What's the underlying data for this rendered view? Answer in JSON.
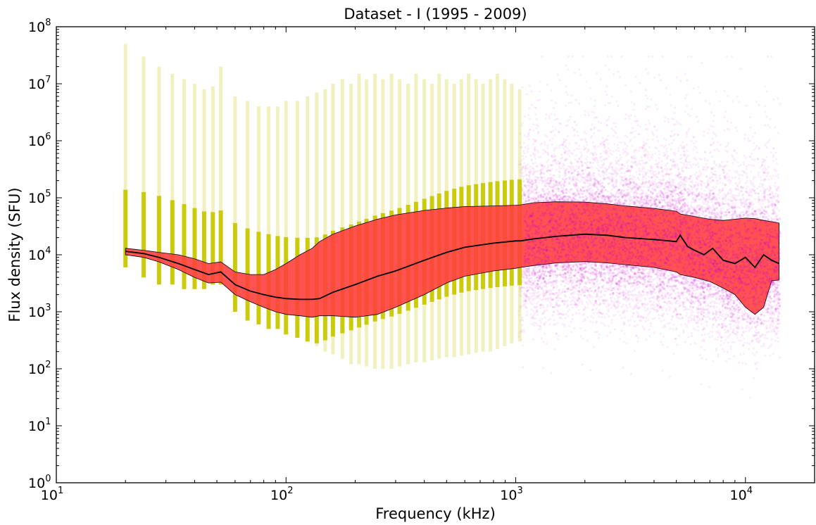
{
  "chart_data": {
    "type": "scatter",
    "title": "Dataset - I (1995 - 2009)",
    "xlabel": "Frequency (kHz)",
    "ylabel": "Flux density (SFU)",
    "xscale": "log",
    "yscale": "log",
    "xlim": [
      10,
      20000
    ],
    "ylim": [
      1,
      100000000
    ],
    "grid": false,
    "legend": "none",
    "x_ticks": [
      {
        "base": "10",
        "exp": "1"
      },
      {
        "base": "10",
        "exp": "2"
      },
      {
        "base": "10",
        "exp": "3"
      },
      {
        "base": "10",
        "exp": "4"
      }
    ],
    "y_ticks": [
      {
        "base": "10",
        "exp": "0"
      },
      {
        "base": "10",
        "exp": "1"
      },
      {
        "base": "10",
        "exp": "2"
      },
      {
        "base": "10",
        "exp": "3"
      },
      {
        "base": "10",
        "exp": "4"
      },
      {
        "base": "10",
        "exp": "5"
      },
      {
        "base": "10",
        "exp": "6"
      },
      {
        "base": "10",
        "exp": "7"
      },
      {
        "base": "10",
        "exp": "8"
      }
    ],
    "colors": {
      "low_freq_points": "#c8c800",
      "high_freq_points": "#cc00cc",
      "band_fill": "#ff3b3b",
      "median_line": "#000000"
    },
    "scatter_low": {
      "frequencies": [
        20,
        24,
        28,
        32,
        36,
        40,
        44,
        48,
        52,
        60,
        68,
        76,
        84,
        92,
        100,
        112,
        124,
        136,
        148,
        160,
        176,
        192,
        208,
        224,
        244,
        264,
        288,
        312,
        340,
        368,
        400,
        432,
        464,
        500,
        540,
        580,
        624,
        672,
        720,
        776,
        832,
        896,
        960,
        1040
      ],
      "y_max": [
        50000000,
        30000000,
        20000000,
        15000000,
        12000000,
        10000000,
        8000000,
        9000000,
        20000000,
        6000000,
        5000000,
        4000000,
        4000000,
        4000000,
        5000000,
        5000000,
        6000000,
        7000000,
        8000000,
        10000000,
        12000000,
        10000000,
        15000000,
        12000000,
        15000000,
        12000000,
        15000000,
        12000000,
        10000000,
        15000000,
        12000000,
        10000000,
        15000000,
        12000000,
        10000000,
        12000000,
        15000000,
        12000000,
        10000000,
        12000000,
        15000000,
        12000000,
        10000000,
        8000000
      ],
      "y_min": [
        6000,
        4000,
        3000,
        3000,
        2500,
        2500,
        2500,
        3000,
        3000,
        1000,
        700,
        600,
        500,
        500,
        400,
        350,
        300,
        250,
        200,
        180,
        150,
        120,
        120,
        110,
        100,
        100,
        100,
        110,
        120,
        130,
        130,
        140,
        150,
        160,
        160,
        170,
        180,
        190,
        200,
        200,
        220,
        250,
        280,
        300
      ]
    },
    "scatter_high": {
      "frequency_range": [
        1040,
        14000
      ],
      "y_range": [
        1,
        30000000
      ]
    },
    "band": {
      "x": [
        20,
        24,
        28,
        34,
        40,
        46,
        52,
        60,
        70,
        80,
        90,
        100,
        115,
        130,
        140,
        160,
        200,
        250,
        300,
        400,
        500,
        600,
        800,
        1000,
        1050,
        1200,
        1500,
        2000,
        2500,
        3000,
        4000,
        5000,
        5200,
        6000,
        7000,
        8000,
        9000,
        10000,
        11000,
        12000,
        13000,
        14000
      ],
      "upper": [
        13000,
        12000,
        11000,
        10000,
        8500,
        7000,
        7500,
        5000,
        4500,
        4500,
        5500,
        7000,
        10000,
        13000,
        17000,
        23000,
        32000,
        42000,
        50000,
        60000,
        66000,
        70000,
        72000,
        74000,
        75000,
        82000,
        85000,
        84000,
        78000,
        72000,
        65000,
        58000,
        52000,
        47000,
        42000,
        40000,
        42000,
        44000,
        43000,
        40000,
        38000,
        36000
      ],
      "lower": [
        10000,
        9000,
        7500,
        5500,
        4000,
        3200,
        3300,
        2000,
        1500,
        1200,
        1000,
        900,
        850,
        800,
        850,
        850,
        800,
        900,
        1200,
        2000,
        3200,
        4200,
        5200,
        5800,
        6000,
        6500,
        7200,
        7600,
        7200,
        6700,
        6000,
        5000,
        4500,
        4000,
        3400,
        2600,
        2000,
        1200,
        900,
        1200,
        3500,
        3600
      ]
    },
    "median": {
      "x": [
        20,
        24,
        28,
        34,
        40,
        46,
        52,
        60,
        70,
        80,
        90,
        100,
        115,
        130,
        140,
        160,
        200,
        250,
        300,
        400,
        500,
        600,
        800,
        1000,
        1050,
        1200,
        1500,
        2000,
        2500,
        3000,
        4000,
        5000,
        5200,
        5600,
        6000,
        6600,
        7200,
        8000,
        9000,
        10000,
        11000,
        12000,
        13000,
        14000
      ],
      "y": [
        11500,
        10500,
        9000,
        7000,
        5500,
        4500,
        5000,
        3000,
        2300,
        2000,
        1800,
        1700,
        1650,
        1650,
        1700,
        2200,
        3000,
        4200,
        5200,
        8000,
        11000,
        13500,
        16000,
        17500,
        17500,
        19000,
        21000,
        23000,
        22000,
        20000,
        18500,
        17000,
        22000,
        14000,
        12000,
        10000,
        13000,
        8000,
        7000,
        9000,
        6000,
        10000,
        8000,
        7000
      ]
    }
  }
}
